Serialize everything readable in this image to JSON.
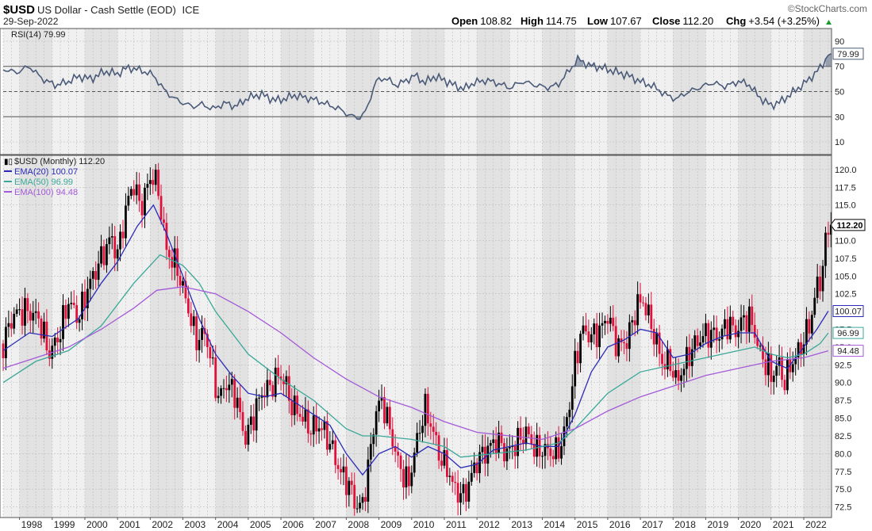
{
  "header": {
    "symbol": "$USD",
    "name": "US Dollar - Cash Settle (EOD)",
    "exchange": "ICE",
    "date": "29-Sep-2022",
    "brand": "©StockCharts.com",
    "open_label": "Open",
    "open": "108.82",
    "high_label": "High",
    "high": "114.75",
    "low_label": "Low",
    "low": "107.67",
    "close_label": "Close",
    "close": "112.20",
    "chg_label": "Chg",
    "chg": "+3.54 (+3.25%)"
  },
  "colors": {
    "up": "#000000",
    "down": "#e0103a",
    "ema20": "#2a2ab8",
    "ema50": "#3aa898",
    "ema100": "#a35ad8",
    "rsi": "#4a5a78",
    "panel_bg": "#f0f0f0",
    "band_bg": "#e2e2e2",
    "grid": "#bdbdbd"
  },
  "chart_data": [
    {
      "type": "line",
      "title": "RSI(14) 79.99",
      "ylim": [
        0,
        100
      ],
      "y_ticks": [
        10,
        30,
        50,
        70,
        90
      ],
      "reference_lines": [
        30,
        50,
        70
      ],
      "last_value_label": "79.99",
      "x": [
        1997.5,
        1997.9,
        1998.3,
        1998.7,
        1999.1,
        1999.5,
        1999.8,
        2000.2,
        2000.6,
        2001.0,
        2001.3,
        2001.7,
        2002.1,
        2002.4,
        2002.7,
        2003.0,
        2003.3,
        2003.6,
        2003.9,
        2004.3,
        2004.6,
        2005.0,
        2005.4,
        2005.8,
        2006.1,
        2006.4,
        2006.8,
        2007.1,
        2007.5,
        2007.8,
        2008.1,
        2008.4,
        2008.6,
        2008.9,
        2009.2,
        2009.5,
        2009.8,
        2010.1,
        2010.4,
        2010.7,
        2011.0,
        2011.3,
        2011.6,
        2011.9,
        2012.3,
        2012.7,
        2013.0,
        2013.4,
        2013.8,
        2014.2,
        2014.5,
        2014.8,
        2015.1,
        2015.4,
        2015.8,
        2016.2,
        2016.6,
        2017.0,
        2017.4,
        2017.8,
        2018.1,
        2018.4,
        2018.8,
        2019.2,
        2019.6,
        2020.0,
        2020.3,
        2020.7,
        2021.0,
        2021.3,
        2021.6,
        2022.0,
        2022.3,
        2022.6,
        2022.75
      ],
      "values": [
        68,
        65,
        70,
        60,
        55,
        58,
        62,
        60,
        66,
        64,
        69,
        67,
        63,
        52,
        45,
        41,
        38,
        40,
        36,
        41,
        38,
        45,
        48,
        43,
        44,
        47,
        45,
        43,
        39,
        36,
        31,
        29,
        34,
        58,
        61,
        55,
        58,
        63,
        57,
        62,
        59,
        55,
        52,
        57,
        59,
        56,
        53,
        58,
        55,
        53,
        56,
        66,
        76,
        71,
        69,
        66,
        63,
        58,
        54,
        47,
        44,
        49,
        53,
        57,
        54,
        58,
        56,
        44,
        39,
        42,
        48,
        56,
        63,
        72,
        79.99
      ]
    },
    {
      "type": "candlestick",
      "title": "$USD (Monthly) 112.20",
      "ylim": [
        71.0,
        122.0
      ],
      "y_ticks": [
        72.5,
        75.0,
        77.5,
        80.0,
        82.5,
        85.0,
        87.5,
        90.0,
        92.5,
        95.0,
        97.5,
        100.0,
        102.5,
        105.0,
        107.5,
        110.0,
        112.5,
        115.0,
        117.5,
        120.0
      ],
      "x_ticks": [
        "1998",
        "1999",
        "2000",
        "2001",
        "2002",
        "2003",
        "2004",
        "2005",
        "2006",
        "2007",
        "2008",
        "2009",
        "2010",
        "2011",
        "2012",
        "2013",
        "2014",
        "2015",
        "2016",
        "2017",
        "2018",
        "2019",
        "2020",
        "2021",
        "2022"
      ],
      "x_range": [
        1997.5,
        2022.85
      ],
      "close_anchors": [
        [
          1997.5,
          95.5
        ],
        [
          1997.8,
          99.5
        ],
        [
          1998.2,
          100.2
        ],
        [
          1998.6,
          99.0
        ],
        [
          1998.9,
          94.0
        ],
        [
          1999.2,
          96.5
        ],
        [
          1999.5,
          101.5
        ],
        [
          1999.8,
          99.0
        ],
        [
          2000.1,
          103.5
        ],
        [
          2000.4,
          106.5
        ],
        [
          2000.8,
          110.5
        ],
        [
          2001.0,
          108.0
        ],
        [
          2001.3,
          115.5
        ],
        [
          2001.5,
          118.0
        ],
        [
          2001.7,
          114.5
        ],
        [
          2001.9,
          117.5
        ],
        [
          2002.1,
          119.5
        ],
        [
          2002.3,
          115.5
        ],
        [
          2002.5,
          108.5
        ],
        [
          2002.8,
          106.5
        ],
        [
          2003.1,
          101.5
        ],
        [
          2003.4,
          96.0
        ],
        [
          2003.7,
          97.0
        ],
        [
          2003.9,
          92.0
        ],
        [
          2004.1,
          87.5
        ],
        [
          2004.3,
          90.0
        ],
        [
          2004.6,
          88.5
        ],
        [
          2004.9,
          82.0
        ],
        [
          2005.1,
          84.5
        ],
        [
          2005.4,
          88.5
        ],
        [
          2005.7,
          89.5
        ],
        [
          2005.9,
          91.0
        ],
        [
          2006.1,
          90.5
        ],
        [
          2006.3,
          87.0
        ],
        [
          2006.6,
          85.5
        ],
        [
          2006.9,
          83.5
        ],
        [
          2007.2,
          84.0
        ],
        [
          2007.5,
          81.5
        ],
        [
          2007.8,
          77.5
        ],
        [
          2008.1,
          75.5
        ],
        [
          2008.3,
          72.5
        ],
        [
          2008.5,
          72.8
        ],
        [
          2008.7,
          79.0
        ],
        [
          2008.9,
          86.0
        ],
        [
          2009.1,
          87.5
        ],
        [
          2009.3,
          84.0
        ],
        [
          2009.6,
          78.5
        ],
        [
          2009.9,
          75.5
        ],
        [
          2010.1,
          80.5
        ],
        [
          2010.4,
          86.5
        ],
        [
          2010.6,
          84.0
        ],
        [
          2010.9,
          79.0
        ],
        [
          2011.1,
          78.0
        ],
        [
          2011.3,
          75.0
        ],
        [
          2011.6,
          74.0
        ],
        [
          2011.8,
          76.5
        ],
        [
          2012.0,
          79.0
        ],
        [
          2012.3,
          80.5
        ],
        [
          2012.6,
          82.0
        ],
        [
          2012.9,
          80.0
        ],
        [
          2013.2,
          81.5
        ],
        [
          2013.5,
          83.0
        ],
        [
          2013.8,
          80.5
        ],
        [
          2014.1,
          80.5
        ],
        [
          2014.4,
          80.0
        ],
        [
          2014.6,
          81.5
        ],
        [
          2014.8,
          86.0
        ],
        [
          2015.0,
          92.5
        ],
        [
          2015.2,
          97.5
        ],
        [
          2015.5,
          96.5
        ],
        [
          2015.8,
          97.5
        ],
        [
          2016.0,
          99.5
        ],
        [
          2016.3,
          95.0
        ],
        [
          2016.6,
          96.0
        ],
        [
          2016.9,
          101.0
        ],
        [
          2017.1,
          101.5
        ],
        [
          2017.4,
          97.0
        ],
        [
          2017.7,
          92.5
        ],
        [
          2017.9,
          93.0
        ],
        [
          2018.1,
          90.0
        ],
        [
          2018.3,
          92.0
        ],
        [
          2018.6,
          95.0
        ],
        [
          2018.9,
          96.5
        ],
        [
          2019.1,
          97.0
        ],
        [
          2019.4,
          96.5
        ],
        [
          2019.7,
          98.5
        ],
        [
          2019.9,
          97.0
        ],
        [
          2020.1,
          98.5
        ],
        [
          2020.3,
          99.5
        ],
        [
          2020.5,
          97.0
        ],
        [
          2020.7,
          93.5
        ],
        [
          2020.9,
          92.5
        ],
        [
          2021.0,
          90.5
        ],
        [
          2021.2,
          93.0
        ],
        [
          2021.4,
          90.0
        ],
        [
          2021.6,
          92.5
        ],
        [
          2021.8,
          94.0
        ],
        [
          2022.0,
          96.0
        ],
        [
          2022.2,
          98.5
        ],
        [
          2022.4,
          103.5
        ],
        [
          2022.55,
          105.0
        ],
        [
          2022.65,
          109.0
        ],
        [
          2022.75,
          112.2
        ]
      ],
      "ema_series": [
        {
          "name": "EMA(20) 100.07",
          "last_label": "100.07",
          "points": [
            [
              1997.5,
              94.5
            ],
            [
              1998.3,
              97.0
            ],
            [
              1999.0,
              96.5
            ],
            [
              1999.8,
              99.0
            ],
            [
              2000.5,
              104.0
            ],
            [
              2001.0,
              107.0
            ],
            [
              2001.6,
              112.0
            ],
            [
              2002.1,
              115.0
            ],
            [
              2002.5,
              111.0
            ],
            [
              2003.0,
              105.0
            ],
            [
              2003.5,
              99.0
            ],
            [
              2004.0,
              94.0
            ],
            [
              2004.5,
              91.0
            ],
            [
              2005.0,
              88.5
            ],
            [
              2005.5,
              88.0
            ],
            [
              2006.0,
              88.5
            ],
            [
              2006.5,
              87.0
            ],
            [
              2007.0,
              85.5
            ],
            [
              2007.5,
              84.0
            ],
            [
              2008.0,
              80.0
            ],
            [
              2008.5,
              77.0
            ],
            [
              2009.0,
              80.0
            ],
            [
              2009.5,
              81.0
            ],
            [
              2010.0,
              79.5
            ],
            [
              2010.5,
              81.0
            ],
            [
              2011.0,
              80.0
            ],
            [
              2011.5,
              78.0
            ],
            [
              2012.0,
              78.5
            ],
            [
              2012.5,
              80.5
            ],
            [
              2013.0,
              81.0
            ],
            [
              2013.5,
              81.5
            ],
            [
              2014.0,
              81.0
            ],
            [
              2014.5,
              81.0
            ],
            [
              2015.0,
              85.5
            ],
            [
              2015.5,
              91.5
            ],
            [
              2016.0,
              95.0
            ],
            [
              2016.5,
              96.0
            ],
            [
              2017.0,
              97.5
            ],
            [
              2017.5,
              97.0
            ],
            [
              2018.0,
              93.5
            ],
            [
              2018.5,
              94.0
            ],
            [
              2019.0,
              95.5
            ],
            [
              2019.5,
              96.5
            ],
            [
              2020.0,
              97.0
            ],
            [
              2020.5,
              97.0
            ],
            [
              2021.0,
              93.0
            ],
            [
              2021.5,
              92.0
            ],
            [
              2022.0,
              95.0
            ],
            [
              2022.4,
              97.5
            ],
            [
              2022.75,
              100.07
            ]
          ]
        },
        {
          "name": "EMA(50) 96.99",
          "last_label": "96.99",
          "points": [
            [
              1997.5,
              90.0
            ],
            [
              1998.5,
              93.0
            ],
            [
              1999.5,
              94.5
            ],
            [
              2000.5,
              98.0
            ],
            [
              2001.5,
              104.0
            ],
            [
              2002.3,
              108.0
            ],
            [
              2003.0,
              106.5
            ],
            [
              2003.5,
              104.0
            ],
            [
              2004.0,
              100.0
            ],
            [
              2005.0,
              94.0
            ],
            [
              2006.0,
              90.5
            ],
            [
              2007.0,
              87.5
            ],
            [
              2008.0,
              83.5
            ],
            [
              2008.5,
              82.5
            ],
            [
              2009.0,
              82.5
            ],
            [
              2010.0,
              82.0
            ],
            [
              2011.0,
              81.0
            ],
            [
              2011.5,
              79.5
            ],
            [
              2012.5,
              80.0
            ],
            [
              2013.5,
              80.5
            ],
            [
              2014.5,
              81.5
            ],
            [
              2015.0,
              83.5
            ],
            [
              2016.0,
              88.5
            ],
            [
              2017.0,
              91.5
            ],
            [
              2018.0,
              92.5
            ],
            [
              2019.0,
              93.5
            ],
            [
              2020.0,
              94.5
            ],
            [
              2020.5,
              95.0
            ],
            [
              2021.0,
              94.0
            ],
            [
              2021.5,
              93.5
            ],
            [
              2022.0,
              94.0
            ],
            [
              2022.5,
              95.5
            ],
            [
              2022.75,
              96.99
            ]
          ]
        },
        {
          "name": "EMA(100) 94.48",
          "last_label": "94.48",
          "points": [
            [
              1997.5,
              92.0
            ],
            [
              1998.5,
              93.5
            ],
            [
              1999.5,
              95.0
            ],
            [
              2000.5,
              97.5
            ],
            [
              2001.5,
              100.5
            ],
            [
              2002.2,
              103.0
            ],
            [
              2003.0,
              103.5
            ],
            [
              2003.5,
              103.0
            ],
            [
              2004.0,
              102.5
            ],
            [
              2005.0,
              100.0
            ],
            [
              2006.0,
              97.0
            ],
            [
              2007.0,
              93.5
            ],
            [
              2008.0,
              90.5
            ],
            [
              2009.0,
              88.0
            ],
            [
              2010.0,
              86.5
            ],
            [
              2011.0,
              84.5
            ],
            [
              2012.0,
              83.0
            ],
            [
              2013.0,
              82.5
            ],
            [
              2014.0,
              82.0
            ],
            [
              2015.0,
              83.5
            ],
            [
              2016.0,
              86.0
            ],
            [
              2017.0,
              88.0
            ],
            [
              2018.0,
              89.5
            ],
            [
              2019.0,
              91.0
            ],
            [
              2020.0,
              92.0
            ],
            [
              2021.0,
              93.0
            ],
            [
              2022.0,
              93.5
            ],
            [
              2022.75,
              94.48
            ]
          ]
        }
      ],
      "price_label": "112.20"
    }
  ]
}
